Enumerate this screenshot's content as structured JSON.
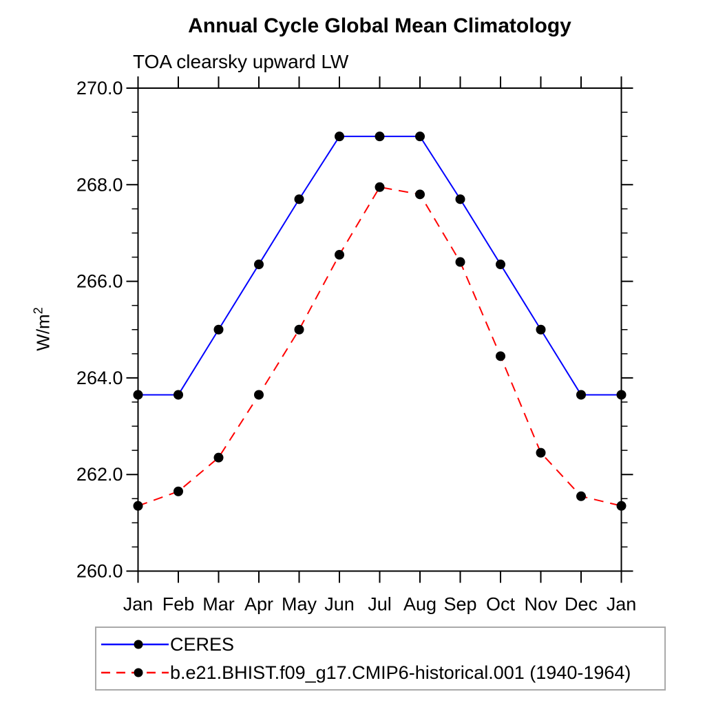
{
  "chart_data": {
    "type": "line",
    "title": "Annual Cycle Global Mean Climatology",
    "subtitle": "TOA clearsky upward LW",
    "ylabel_base": "W/m",
    "ylabel_sup": "2",
    "xlabel": "",
    "categories": [
      "Jan",
      "Feb",
      "Mar",
      "Apr",
      "May",
      "Jun",
      "Jul",
      "Aug",
      "Sep",
      "Oct",
      "Nov",
      "Dec",
      "Jan"
    ],
    "ylim": [
      260.0,
      270.0
    ],
    "ytick_step": 2.0,
    "yminor_step": 0.5,
    "ytick_labels": [
      "260.0",
      "262.0",
      "264.0",
      "266.0",
      "268.0",
      "270.0"
    ],
    "grid": "off",
    "legend_position": "bottom-left",
    "frame_color": "#000000",
    "marker_color": "#000000",
    "series": [
      {
        "name": "CERES",
        "color": "#0000ff",
        "style": "solid",
        "marker": "circle",
        "values": [
          263.65,
          263.65,
          265.0,
          266.35,
          267.7,
          269.0,
          269.0,
          269.0,
          267.7,
          266.35,
          265.0,
          263.65,
          263.65
        ]
      },
      {
        "name": "b.e21.BHIST.f09_g17.CMIP6-historical.001 (1940-1964)",
        "color": "#ff0000",
        "style": "dashed",
        "marker": "circle",
        "values": [
          261.35,
          261.65,
          262.35,
          263.65,
          265.0,
          266.55,
          267.95,
          267.8,
          266.4,
          264.45,
          262.45,
          261.55,
          261.35
        ]
      }
    ]
  }
}
